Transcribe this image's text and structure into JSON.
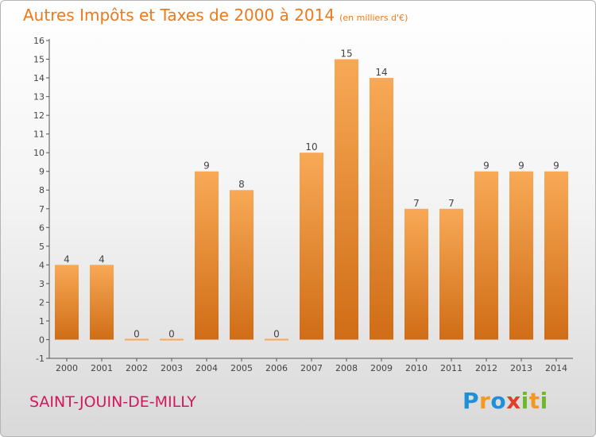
{
  "header": {
    "title": "Autres Impôts et Taxes de 2000 à 2014",
    "unit": "(en milliers d'€)"
  },
  "commune": "SAINT-JOUIN-DE-MILLY",
  "logo": {
    "text": "Proxiti",
    "letters": [
      {
        "char": "P",
        "color": "#1e90d8"
      },
      {
        "char": "r",
        "color": "#f39a1e"
      },
      {
        "char": "o",
        "color": "#1e90d8"
      },
      {
        "char": "x",
        "color": "#e43d2a"
      },
      {
        "char": "i",
        "color": "#6fb82a"
      },
      {
        "char": "t",
        "color": "#f39a1e"
      },
      {
        "char": "i",
        "color": "#6fb82a"
      }
    ]
  },
  "colors": {
    "bar_light": "#f8a956",
    "bar_dark": "#d06d16",
    "axis": "#555555",
    "text": "#444444"
  },
  "chart_data": {
    "type": "bar",
    "categories": [
      "2000",
      "2001",
      "2002",
      "2003",
      "2004",
      "2005",
      "2006",
      "2007",
      "2008",
      "2009",
      "2010",
      "2011",
      "2012",
      "2013",
      "2014"
    ],
    "values": [
      4,
      4,
      0,
      0,
      9,
      8,
      0,
      10,
      15,
      14,
      7,
      7,
      9,
      9,
      9
    ],
    "data_labels": [
      "4",
      "4",
      "0",
      "0",
      "9",
      "8",
      "0",
      "10",
      "15",
      "14",
      "7",
      "7",
      "9",
      "9",
      "9"
    ],
    "ylim": [
      -1,
      16
    ],
    "yticks": [
      -1,
      0,
      1,
      2,
      3,
      4,
      5,
      6,
      7,
      8,
      9,
      10,
      11,
      12,
      13,
      14,
      15,
      16
    ],
    "grid": false
  }
}
